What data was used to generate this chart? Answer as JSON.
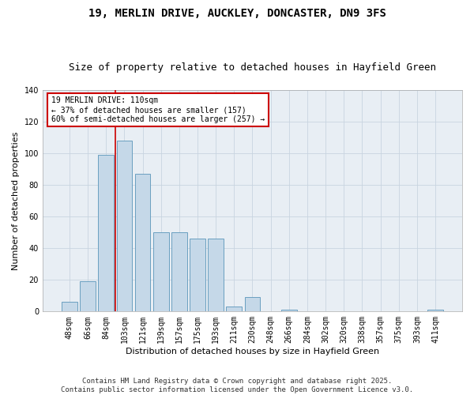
{
  "title1": "19, MERLIN DRIVE, AUCKLEY, DONCASTER, DN9 3FS",
  "title2": "Size of property relative to detached houses in Hayfield Green",
  "xlabel": "Distribution of detached houses by size in Hayfield Green",
  "ylabel": "Number of detached properties",
  "categories": [
    "48sqm",
    "66sqm",
    "84sqm",
    "103sqm",
    "121sqm",
    "139sqm",
    "157sqm",
    "175sqm",
    "193sqm",
    "211sqm",
    "230sqm",
    "248sqm",
    "266sqm",
    "284sqm",
    "302sqm",
    "320sqm",
    "338sqm",
    "357sqm",
    "375sqm",
    "393sqm",
    "411sqm"
  ],
  "values": [
    6,
    19,
    99,
    108,
    87,
    50,
    50,
    46,
    46,
    3,
    9,
    0,
    1,
    0,
    0,
    0,
    0,
    0,
    0,
    0,
    1
  ],
  "bar_color": "#c5d8e8",
  "bar_edge_color": "#6a9fc0",
  "annotation_line1": "19 MERLIN DRIVE: 110sqm",
  "annotation_line2": "← 37% of detached houses are smaller (157)",
  "annotation_line3": "60% of semi-detached houses are larger (257) →",
  "annotation_box_color": "#ffffff",
  "annotation_box_edge_color": "#cc0000",
  "vline_color": "#cc0000",
  "vline_x": 2.5,
  "ylim": [
    0,
    140
  ],
  "yticks": [
    0,
    20,
    40,
    60,
    80,
    100,
    120,
    140
  ],
  "grid_color": "#c8d4e0",
  "background_color": "#e8eef4",
  "footer_text": "Contains HM Land Registry data © Crown copyright and database right 2025.\nContains public sector information licensed under the Open Government Licence v3.0.",
  "title_fontsize": 10,
  "subtitle_fontsize": 9,
  "axis_label_fontsize": 8,
  "tick_fontsize": 7,
  "annotation_fontsize": 7,
  "footer_fontsize": 6.5
}
